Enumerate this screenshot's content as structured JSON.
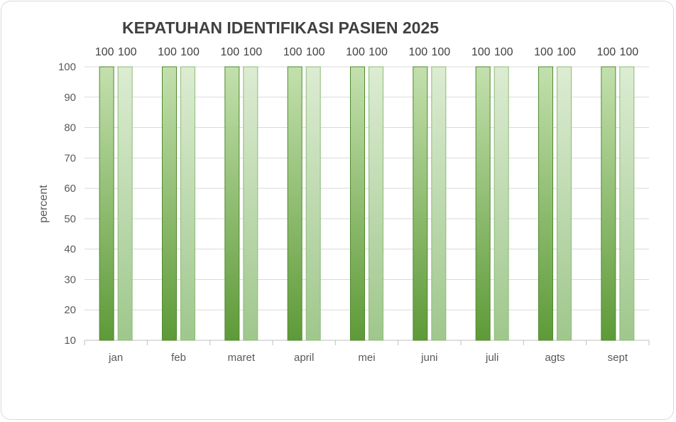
{
  "chart_data": {
    "type": "bar",
    "title": "KEPATUHAN IDENTIFIKASI PASIEN 2025",
    "xlabel": "",
    "ylabel": "percent",
    "ylim": [
      10,
      100
    ],
    "yticks": [
      10,
      20,
      30,
      40,
      50,
      60,
      70,
      80,
      90,
      100
    ],
    "grid": true,
    "legend": "none",
    "categories": [
      "jan",
      "feb",
      "maret",
      "april",
      "mei",
      "juni",
      "juli",
      "agts",
      "sept"
    ],
    "series": [
      {
        "values": [
          100,
          100,
          100,
          100,
          100,
          100,
          100,
          100,
          100
        ],
        "color": "#5e9a38"
      },
      {
        "values": [
          100,
          100,
          100,
          100,
          100,
          100,
          100,
          100,
          100
        ],
        "color": "#a9cf96"
      }
    ]
  }
}
